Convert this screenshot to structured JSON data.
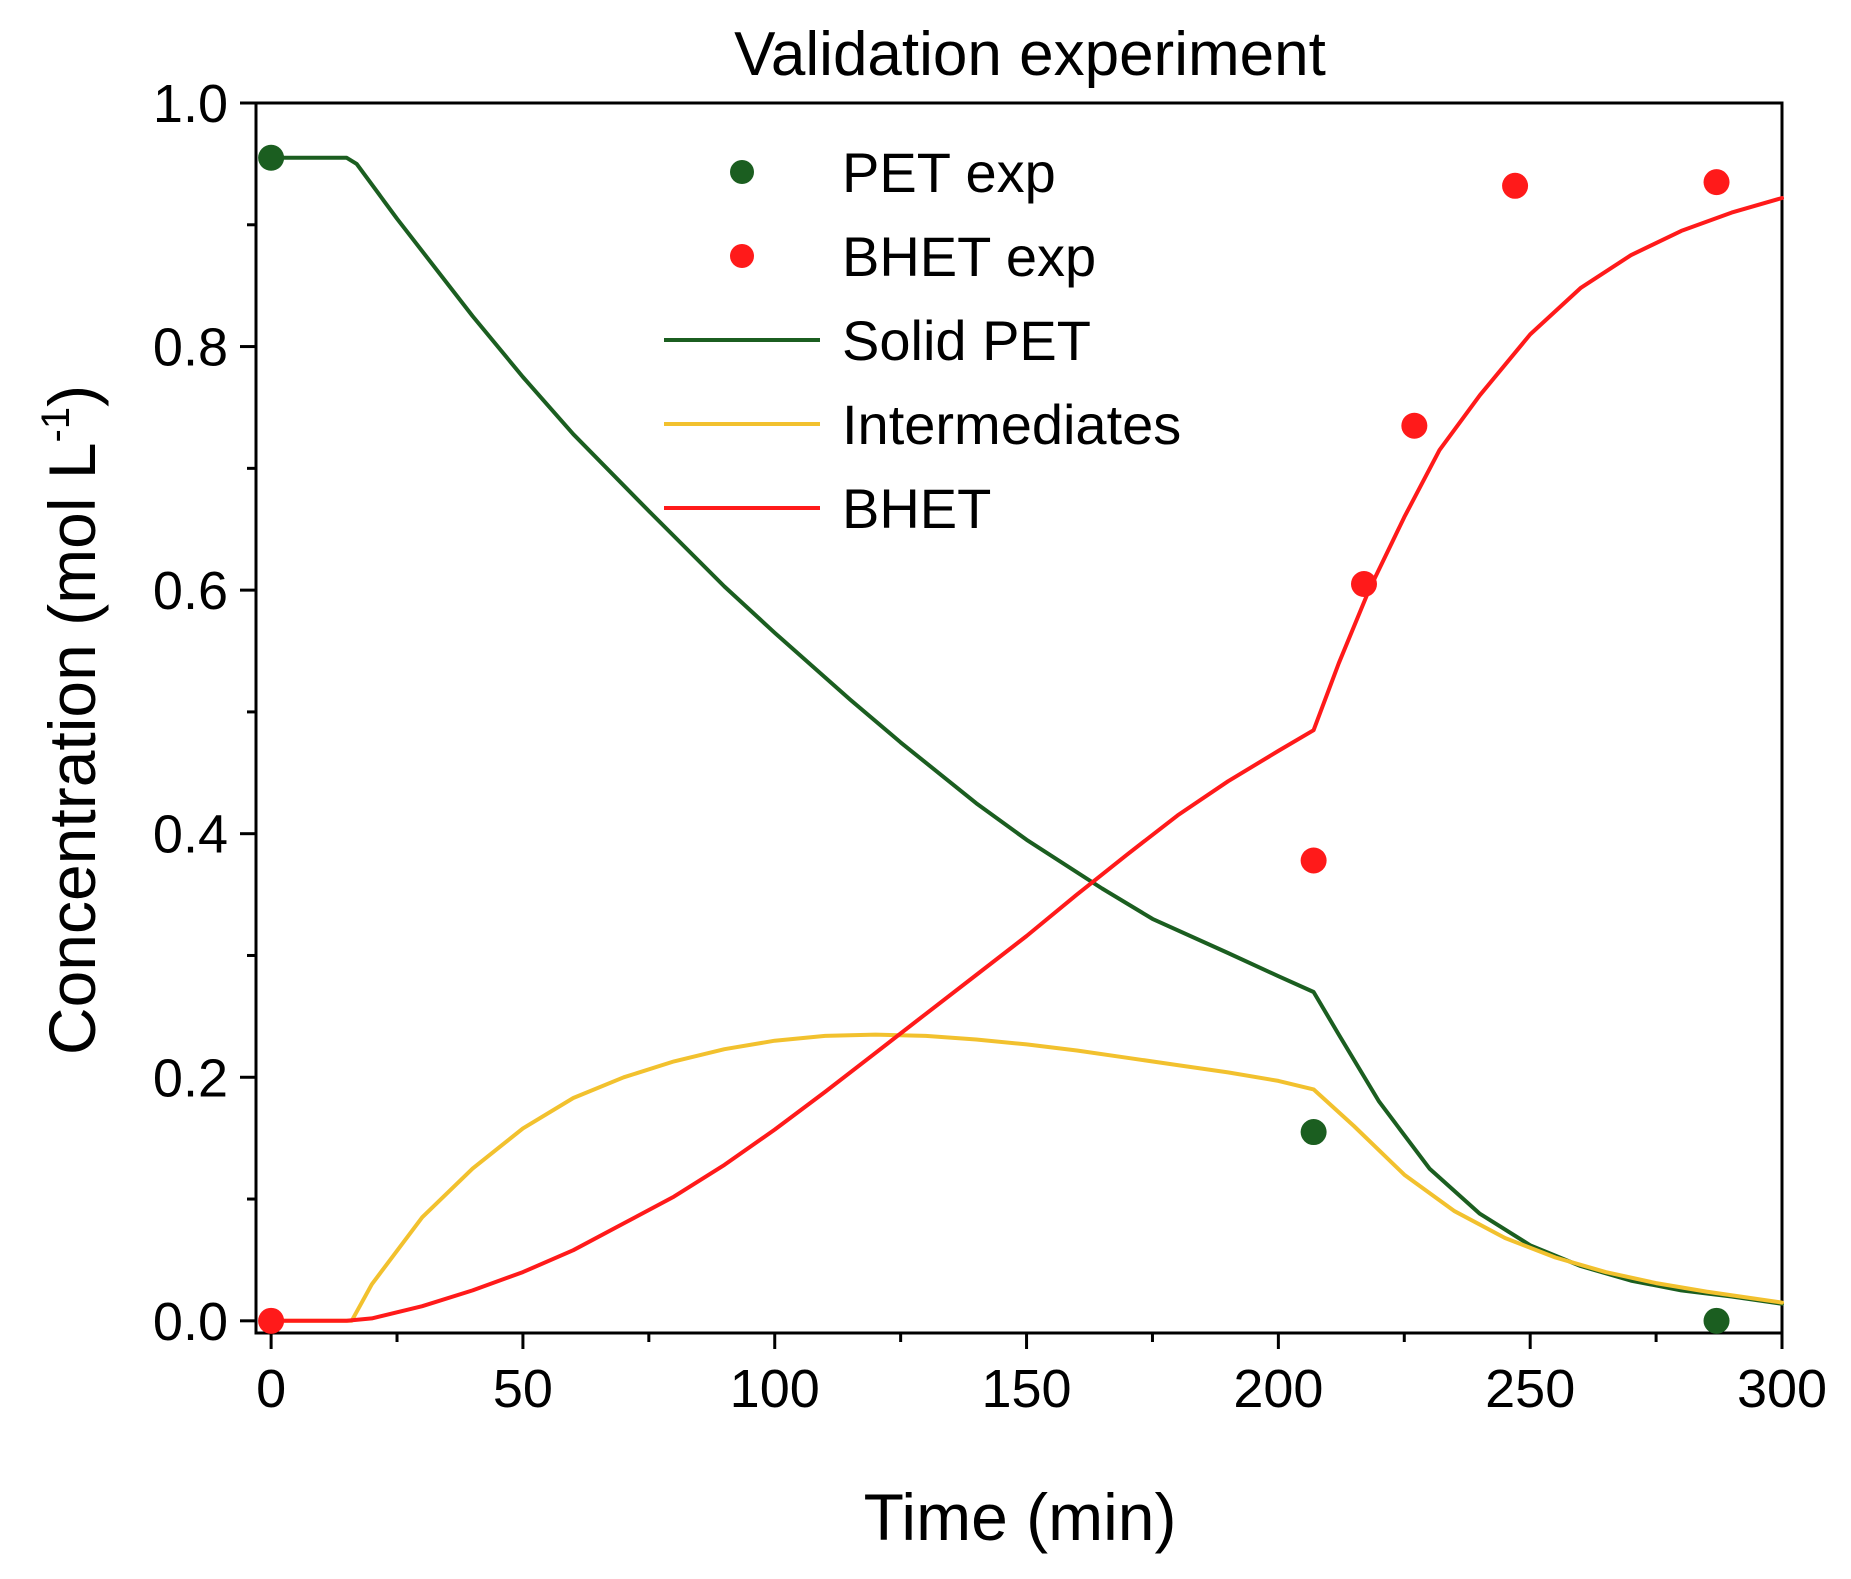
{
  "chart_data": {
    "type": "line",
    "title": "Validation experiment",
    "xlabel": "Time (min)",
    "ylabel": "Concentration (mol L",
    "ylabel_sup": "-1",
    "ylabel_close": ")",
    "xlim": [
      -3,
      300
    ],
    "ylim": [
      -0.01,
      1.0
    ],
    "xticks": [
      0,
      50,
      100,
      150,
      200,
      250,
      300
    ],
    "xtick_labels": [
      "0",
      "50",
      "100",
      "150",
      "200",
      "250",
      "300"
    ],
    "yticks": [
      0.0,
      0.2,
      0.4,
      0.6,
      0.8,
      1.0
    ],
    "ytick_labels": [
      "0.0",
      "0.2",
      "0.4",
      "0.6",
      "0.8",
      "1.0"
    ],
    "x_minor_step": 25,
    "y_minor_step": 0.1,
    "legend_position": "top-right",
    "scatter_series": [
      {
        "name": "PET exp",
        "color": "#1b5e20",
        "points": [
          [
            0,
            0.955
          ],
          [
            207,
            0.155
          ],
          [
            287,
            0.0
          ]
        ]
      },
      {
        "name": "BHET exp",
        "color": "#ff1a1a",
        "points": [
          [
            0,
            0.0
          ],
          [
            207,
            0.378
          ],
          [
            217,
            0.605
          ],
          [
            227,
            0.735
          ],
          [
            247,
            0.932
          ],
          [
            287,
            0.935
          ]
        ]
      }
    ],
    "line_series": [
      {
        "name": "Solid PET",
        "color": "#1b5e20",
        "points": [
          [
            0,
            0.955
          ],
          [
            15,
            0.955
          ],
          [
            17,
            0.95
          ],
          [
            25,
            0.905
          ],
          [
            40,
            0.825
          ],
          [
            50,
            0.775
          ],
          [
            60,
            0.728
          ],
          [
            75,
            0.665
          ],
          [
            90,
            0.603
          ],
          [
            100,
            0.565
          ],
          [
            115,
            0.51
          ],
          [
            125,
            0.475
          ],
          [
            140,
            0.425
          ],
          [
            150,
            0.395
          ],
          [
            165,
            0.355
          ],
          [
            175,
            0.33
          ],
          [
            190,
            0.302
          ],
          [
            200,
            0.283
          ],
          [
            207,
            0.27
          ],
          [
            212,
            0.235
          ],
          [
            220,
            0.18
          ],
          [
            230,
            0.125
          ],
          [
            240,
            0.088
          ],
          [
            250,
            0.062
          ],
          [
            260,
            0.045
          ],
          [
            270,
            0.033
          ],
          [
            280,
            0.025
          ],
          [
            290,
            0.02
          ],
          [
            300,
            0.014
          ]
        ]
      },
      {
        "name": "Intermediates",
        "color": "#f2c12e",
        "points": [
          [
            0,
            0.0
          ],
          [
            16,
            0.0
          ],
          [
            20,
            0.03
          ],
          [
            30,
            0.085
          ],
          [
            40,
            0.125
          ],
          [
            50,
            0.158
          ],
          [
            60,
            0.183
          ],
          [
            70,
            0.2
          ],
          [
            80,
            0.213
          ],
          [
            90,
            0.223
          ],
          [
            100,
            0.23
          ],
          [
            110,
            0.234
          ],
          [
            120,
            0.235
          ],
          [
            130,
            0.234
          ],
          [
            140,
            0.231
          ],
          [
            150,
            0.227
          ],
          [
            160,
            0.222
          ],
          [
            170,
            0.216
          ],
          [
            180,
            0.21
          ],
          [
            190,
            0.204
          ],
          [
            200,
            0.197
          ],
          [
            207,
            0.19
          ],
          [
            215,
            0.16
          ],
          [
            225,
            0.12
          ],
          [
            235,
            0.09
          ],
          [
            245,
            0.068
          ],
          [
            255,
            0.052
          ],
          [
            265,
            0.04
          ],
          [
            275,
            0.031
          ],
          [
            285,
            0.024
          ],
          [
            300,
            0.015
          ]
        ]
      },
      {
        "name": "BHET",
        "color": "#ff1a1a",
        "points": [
          [
            0,
            0.0
          ],
          [
            15,
            0.0
          ],
          [
            20,
            0.002
          ],
          [
            30,
            0.012
          ],
          [
            40,
            0.025
          ],
          [
            50,
            0.04
          ],
          [
            60,
            0.058
          ],
          [
            70,
            0.08
          ],
          [
            80,
            0.102
          ],
          [
            90,
            0.128
          ],
          [
            100,
            0.157
          ],
          [
            110,
            0.188
          ],
          [
            120,
            0.22
          ],
          [
            130,
            0.252
          ],
          [
            140,
            0.284
          ],
          [
            150,
            0.316
          ],
          [
            160,
            0.35
          ],
          [
            170,
            0.383
          ],
          [
            180,
            0.415
          ],
          [
            190,
            0.443
          ],
          [
            200,
            0.468
          ],
          [
            207,
            0.485
          ],
          [
            212,
            0.54
          ],
          [
            218,
            0.6
          ],
          [
            225,
            0.66
          ],
          [
            232,
            0.715
          ],
          [
            240,
            0.76
          ],
          [
            250,
            0.81
          ],
          [
            260,
            0.848
          ],
          [
            270,
            0.875
          ],
          [
            280,
            0.895
          ],
          [
            290,
            0.91
          ],
          [
            300,
            0.922
          ]
        ]
      }
    ],
    "legend": [
      {
        "label": "PET exp",
        "kind": "marker",
        "color": "#1b5e20"
      },
      {
        "label": "BHET exp",
        "kind": "marker",
        "color": "#ff1a1a"
      },
      {
        "label": "Solid PET",
        "kind": "line",
        "color": "#1b5e20"
      },
      {
        "label": "Intermediates",
        "kind": "line",
        "color": "#f2c12e"
      },
      {
        "label": "BHET",
        "kind": "line",
        "color": "#ff1a1a"
      }
    ]
  }
}
